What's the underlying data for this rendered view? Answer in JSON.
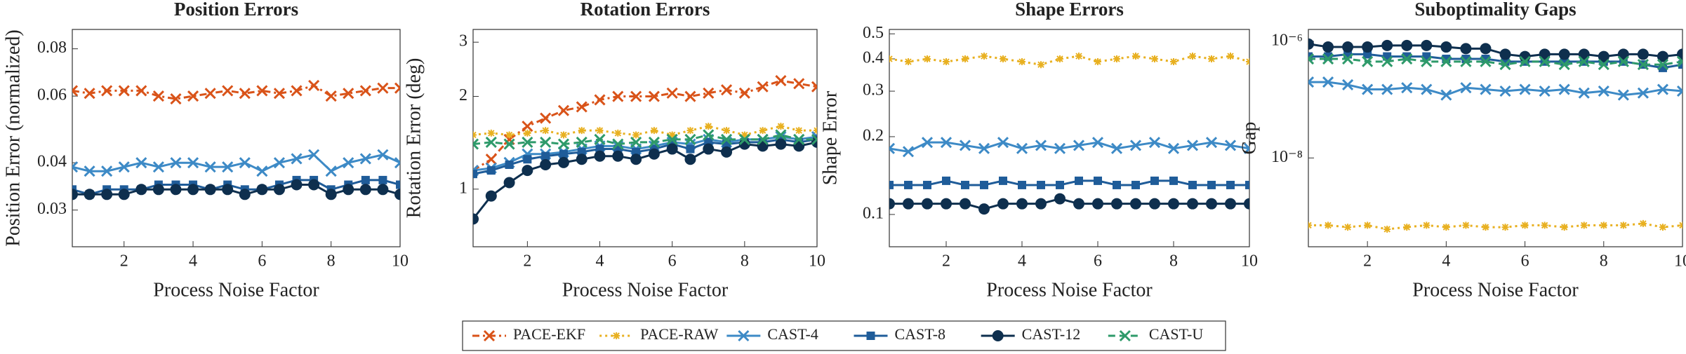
{
  "chart_data": [
    {
      "type": "line",
      "title": "Position Errors",
      "x_label": "Process Noise Factor",
      "y_label": "Position Error (normalized)",
      "log_y": true,
      "x": [
        0.5,
        1,
        1.5,
        2,
        2.5,
        3,
        3.5,
        4,
        4.5,
        5,
        5.5,
        6,
        6.5,
        7,
        7.5,
        8,
        8.5,
        9,
        9.5,
        10
      ],
      "xlim": [
        0.5,
        10
      ],
      "xticks": [
        2,
        4,
        6,
        8,
        10
      ],
      "ylim": [
        0.024,
        0.09
      ],
      "yticks": [
        0.03,
        0.04,
        0.06,
        0.08
      ],
      "series": [
        {
          "name": "PACE-EKF",
          "color": "#d95319",
          "marker": "x",
          "dash": "dashdot",
          "values": [
            0.062,
            0.061,
            0.062,
            0.062,
            0.062,
            0.06,
            0.059,
            0.06,
            0.061,
            0.062,
            0.061,
            0.062,
            0.061,
            0.062,
            0.064,
            0.06,
            0.061,
            0.062,
            0.063,
            0.063
          ]
        },
        {
          "name": "CAST-4",
          "color": "#3d8ac6",
          "marker": "x",
          "dash": "solid",
          "values": [
            0.039,
            0.038,
            0.038,
            0.039,
            0.04,
            0.039,
            0.04,
            0.04,
            0.039,
            0.039,
            0.04,
            0.038,
            0.04,
            0.041,
            0.042,
            0.038,
            0.04,
            0.041,
            0.042,
            0.04
          ]
        },
        {
          "name": "CAST-8",
          "color": "#1f5c99",
          "marker": "square",
          "dash": "solid",
          "values": [
            0.034,
            0.033,
            0.034,
            0.034,
            0.034,
            0.035,
            0.035,
            0.035,
            0.034,
            0.035,
            0.034,
            0.034,
            0.035,
            0.036,
            0.036,
            0.034,
            0.035,
            0.036,
            0.036,
            0.035
          ]
        },
        {
          "name": "CAST-12",
          "color": "#0e2f4e",
          "marker": "circle",
          "dash": "solid",
          "values": [
            0.033,
            0.033,
            0.033,
            0.033,
            0.034,
            0.034,
            0.034,
            0.034,
            0.034,
            0.034,
            0.033,
            0.034,
            0.034,
            0.035,
            0.035,
            0.033,
            0.034,
            0.034,
            0.034,
            0.033
          ]
        }
      ]
    },
    {
      "type": "line",
      "title": "Rotation Errors",
      "x_label": "Process Noise Factor",
      "y_label": "Rotation Error (deg)",
      "log_y": true,
      "x": [
        0.5,
        1,
        1.5,
        2,
        2.5,
        3,
        3.5,
        4,
        4.5,
        5,
        5.5,
        6,
        6.5,
        7,
        7.5,
        8,
        8.5,
        9,
        9.5,
        10
      ],
      "xlim": [
        0.5,
        10
      ],
      "xticks": [
        2,
        4,
        6,
        8,
        10
      ],
      "ylim": [
        0.65,
        3.3
      ],
      "yticks": [
        1,
        2,
        3
      ],
      "series": [
        {
          "name": "PACE-EKF",
          "color": "#d95319",
          "marker": "x",
          "dash": "dashdot",
          "values": [
            1.15,
            1.25,
            1.45,
            1.6,
            1.7,
            1.8,
            1.85,
            1.95,
            2.0,
            2.0,
            2.0,
            2.05,
            2.0,
            2.05,
            2.1,
            2.05,
            2.15,
            2.25,
            2.2,
            2.15
          ]
        },
        {
          "name": "PACE-RAW",
          "color": "#e8b020",
          "marker": "star",
          "dash": "dotted",
          "values": [
            1.5,
            1.52,
            1.5,
            1.52,
            1.55,
            1.5,
            1.55,
            1.55,
            1.52,
            1.5,
            1.55,
            1.5,
            1.55,
            1.6,
            1.55,
            1.5,
            1.55,
            1.6,
            1.55,
            1.55
          ]
        },
        {
          "name": "CAST-4",
          "color": "#3d8ac6",
          "marker": "x",
          "dash": "solid",
          "values": [
            1.15,
            1.17,
            1.22,
            1.3,
            1.3,
            1.32,
            1.35,
            1.38,
            1.38,
            1.35,
            1.38,
            1.42,
            1.4,
            1.45,
            1.42,
            1.45,
            1.45,
            1.48,
            1.45,
            1.48
          ]
        },
        {
          "name": "CAST-8",
          "color": "#1f5c99",
          "marker": "square",
          "dash": "solid",
          "values": [
            1.12,
            1.15,
            1.2,
            1.25,
            1.28,
            1.3,
            1.32,
            1.35,
            1.35,
            1.32,
            1.35,
            1.4,
            1.35,
            1.42,
            1.4,
            1.42,
            1.42,
            1.45,
            1.42,
            1.45
          ]
        },
        {
          "name": "CAST-12",
          "color": "#0e2f4e",
          "marker": "circle",
          "dash": "solid",
          "values": [
            0.8,
            0.95,
            1.05,
            1.15,
            1.2,
            1.22,
            1.25,
            1.28,
            1.28,
            1.25,
            1.3,
            1.35,
            1.25,
            1.35,
            1.32,
            1.4,
            1.38,
            1.4,
            1.38,
            1.42
          ]
        },
        {
          "name": "CAST-U",
          "color": "#2e9a6a",
          "marker": "x",
          "dash": "dashed",
          "values": [
            1.4,
            1.42,
            1.4,
            1.42,
            1.42,
            1.4,
            1.42,
            1.45,
            1.4,
            1.42,
            1.42,
            1.45,
            1.45,
            1.5,
            1.45,
            1.45,
            1.45,
            1.5,
            1.45,
            1.45
          ]
        }
      ]
    },
    {
      "type": "line",
      "title": "Shape Errors",
      "x_label": "Process Noise Factor",
      "y_label": "Shape Error",
      "log_y": true,
      "x": [
        0.5,
        1,
        1.5,
        2,
        2.5,
        3,
        3.5,
        4,
        4.5,
        5,
        5.5,
        6,
        6.5,
        7,
        7.5,
        8,
        8.5,
        9,
        9.5,
        10
      ],
      "xlim": [
        0.5,
        10
      ],
      "xticks": [
        2,
        4,
        6,
        8,
        10
      ],
      "ylim": [
        0.075,
        0.52
      ],
      "yticks": [
        0.1,
        0.2,
        0.3,
        0.4,
        0.5
      ],
      "series": [
        {
          "name": "PACE-RAW",
          "color": "#e8b020",
          "marker": "star",
          "dash": "dotted",
          "values": [
            0.4,
            0.39,
            0.4,
            0.39,
            0.4,
            0.41,
            0.4,
            0.39,
            0.38,
            0.4,
            0.41,
            0.39,
            0.4,
            0.41,
            0.4,
            0.39,
            0.41,
            0.4,
            0.41,
            0.39
          ]
        },
        {
          "name": "CAST-4",
          "color": "#3d8ac6",
          "marker": "x",
          "dash": "solid",
          "values": [
            0.18,
            0.175,
            0.19,
            0.19,
            0.185,
            0.18,
            0.19,
            0.18,
            0.185,
            0.18,
            0.185,
            0.19,
            0.18,
            0.185,
            0.19,
            0.18,
            0.185,
            0.19,
            0.185,
            0.18
          ]
        },
        {
          "name": "CAST-8",
          "color": "#1f5c99",
          "marker": "square",
          "dash": "solid",
          "values": [
            0.13,
            0.13,
            0.13,
            0.135,
            0.13,
            0.13,
            0.135,
            0.13,
            0.13,
            0.13,
            0.135,
            0.135,
            0.13,
            0.13,
            0.135,
            0.135,
            0.13,
            0.13,
            0.13,
            0.13
          ]
        },
        {
          "name": "CAST-12",
          "color": "#0e2f4e",
          "marker": "circle",
          "dash": "solid",
          "values": [
            0.11,
            0.11,
            0.11,
            0.11,
            0.11,
            0.105,
            0.11,
            0.11,
            0.11,
            0.115,
            0.11,
            0.11,
            0.11,
            0.11,
            0.11,
            0.11,
            0.11,
            0.11,
            0.11,
            0.11
          ]
        }
      ]
    },
    {
      "type": "line",
      "title": "Suboptimality Gaps",
      "x_label": "Process Noise Factor",
      "y_label": "Gap",
      "log_y": true,
      "x": [
        0.5,
        1,
        1.5,
        2,
        2.5,
        3,
        3.5,
        4,
        4.5,
        5,
        5.5,
        6,
        6.5,
        7,
        7.5,
        8,
        8.5,
        9,
        9.5,
        10
      ],
      "xlim": [
        0.5,
        10
      ],
      "xticks": [
        2,
        4,
        6,
        8,
        10
      ],
      "ylim": [
        3e-10,
        1.6e-06
      ],
      "yticks": [
        {
          "value": 1e-08,
          "label": "10⁻⁸"
        },
        {
          "value": 1e-06,
          "label": "10⁻⁶"
        }
      ],
      "series": [
        {
          "name": "PACE-RAW",
          "color": "#e8b020",
          "marker": "star",
          "dash": "dotted",
          "values": [
            7e-10,
            7e-10,
            6.5e-10,
            7e-10,
            6e-10,
            6.5e-10,
            7e-10,
            6.5e-10,
            7e-10,
            6.5e-10,
            6.5e-10,
            7e-10,
            7e-10,
            6.5e-10,
            7e-10,
            7e-10,
            7e-10,
            7.5e-10,
            6.5e-10,
            7e-10
          ]
        },
        {
          "name": "CAST-4",
          "color": "#3d8ac6",
          "marker": "x",
          "dash": "solid",
          "values": [
            2e-07,
            2e-07,
            1.8e-07,
            1.5e-07,
            1.5e-07,
            1.6e-07,
            1.5e-07,
            1.2e-07,
            1.6e-07,
            1.5e-07,
            1.4e-07,
            1.5e-07,
            1.4e-07,
            1.5e-07,
            1.3e-07,
            1.4e-07,
            1.2e-07,
            1.3e-07,
            1.5e-07,
            1.4e-07
          ]
        },
        {
          "name": "CAST-8",
          "color": "#1f5c99",
          "marker": "square",
          "dash": "solid",
          "values": [
            5.5e-07,
            5.5e-07,
            6e-07,
            6e-07,
            5.5e-07,
            5.5e-07,
            5.5e-07,
            5e-07,
            5e-07,
            5e-07,
            4.5e-07,
            4.5e-07,
            4.5e-07,
            4.5e-07,
            4.5e-07,
            4.5e-07,
            4.5e-07,
            4e-07,
            3.5e-07,
            4e-07
          ]
        },
        {
          "name": "CAST-12",
          "color": "#0e2f4e",
          "marker": "circle",
          "dash": "solid",
          "values": [
            9e-07,
            8e-07,
            8e-07,
            8e-07,
            8.5e-07,
            8.5e-07,
            8.5e-07,
            8e-07,
            7.5e-07,
            7.5e-07,
            6e-07,
            5.5e-07,
            6e-07,
            6e-07,
            6e-07,
            5.5e-07,
            6e-07,
            6e-07,
            5.5e-07,
            6e-07
          ]
        },
        {
          "name": "CAST-U",
          "color": "#2e9a6a",
          "marker": "x",
          "dash": "dashed",
          "values": [
            5e-07,
            5e-07,
            5e-07,
            4.5e-07,
            4.5e-07,
            5e-07,
            4.5e-07,
            4.5e-07,
            4.5e-07,
            4.5e-07,
            4e-07,
            4.5e-07,
            4.5e-07,
            4e-07,
            4.5e-07,
            4e-07,
            4.5e-07,
            4e-07,
            4e-07,
            4.5e-07
          ]
        }
      ]
    }
  ]
}
